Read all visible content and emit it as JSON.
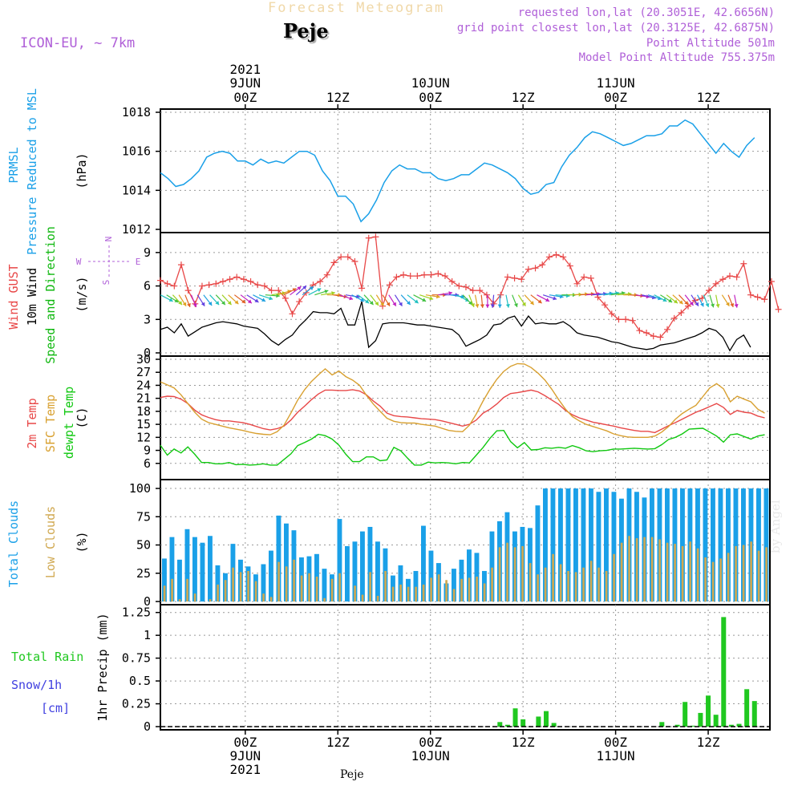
{
  "header": {
    "title": "Forecast Meteogram",
    "location": "Peje",
    "model": "ICON-EU, ~ 7km",
    "requested": "requested lon,lat (20.3051E, 42.6656N)",
    "gridpoint": "grid point closest lon,lat (20.3125E, 42.6875N)",
    "altitude": "Point Altitude 501m",
    "model_altitude": "Model Point Altitude 755.375m",
    "watermark": "by Angel",
    "footer_location": "Peje"
  },
  "colors": {
    "pressure": "#1aa0e8",
    "gust": "#e84848",
    "wind": "#000000",
    "dir": "#10b810",
    "temp2m": "#e84848",
    "sfc": "#d8a030",
    "dewpt": "#10c810",
    "total_cloud": "#1aa0e8",
    "low_cloud": "#d0a850",
    "rain": "#20c820",
    "snow": "#4040e0",
    "purple": "#b060d8"
  },
  "time_axis": {
    "top": [
      {
        "h": 0,
        "l1": "2021",
        "l2": "9JUN",
        "l3": "00Z"
      },
      {
        "h": 12,
        "l1": "",
        "l2": "",
        "l3": "12Z"
      },
      {
        "h": 24,
        "l1": "",
        "l2": "10JUN",
        "l3": "00Z"
      },
      {
        "h": 36,
        "l1": "",
        "l2": "",
        "l3": "12Z"
      },
      {
        "h": 48,
        "l1": "",
        "l2": "11JUN",
        "l3": "00Z"
      },
      {
        "h": 60,
        "l1": "",
        "l2": "",
        "l3": "12Z"
      }
    ],
    "bottom": [
      {
        "h": 0,
        "l1": "00Z",
        "l2": "9JUN",
        "l3": "2021"
      },
      {
        "h": 12,
        "l1": "12Z",
        "l2": "",
        "l3": ""
      },
      {
        "h": 24,
        "l1": "00Z",
        "l2": "10JUN",
        "l3": ""
      },
      {
        "h": 36,
        "l1": "12Z",
        "l2": "",
        "l3": ""
      },
      {
        "h": 48,
        "l1": "00Z",
        "l2": "11JUN",
        "l3": ""
      },
      {
        "h": 60,
        "l1": "12Z",
        "l2": "",
        "l3": ""
      }
    ]
  },
  "chart_data": [
    {
      "type": "line",
      "id": "pressure",
      "ylabel_left": [
        "PRMSL",
        "Pressure Reduced to MSL"
      ],
      "unit": "(hPa)",
      "ylim": [
        1012,
        1018
      ],
      "yticks": [
        1012,
        1014,
        1016,
        1018
      ],
      "x_start": -11,
      "x_step": 1,
      "series": [
        {
          "name": "PRMSL",
          "values": [
            1014.9,
            1014.6,
            1014.2,
            1014.3,
            1014.6,
            1015.0,
            1015.7,
            1015.9,
            1016.0,
            1015.9,
            1015.5,
            1015.5,
            1015.3,
            1015.6,
            1015.4,
            1015.5,
            1015.4,
            1015.7,
            1016.0,
            1016.0,
            1015.8,
            1015.0,
            1014.5,
            1013.7,
            1013.7,
            1013.3,
            1012.4,
            1012.8,
            1013.5,
            1014.4,
            1015.0,
            1015.3,
            1015.1,
            1015.1,
            1014.9,
            1014.9,
            1014.6,
            1014.5,
            1014.6,
            1014.8,
            1014.8,
            1015.1,
            1015.4,
            1015.3,
            1015.1,
            1014.9,
            1014.6,
            1014.1,
            1013.8,
            1013.9,
            1014.3,
            1014.4,
            1015.2,
            1015.8,
            1016.2,
            1016.7,
            1017.0,
            1016.9,
            1016.7,
            1016.5,
            1016.3,
            1016.4,
            1016.6,
            1016.8,
            1016.8,
            1016.9,
            1017.3,
            1017.3,
            1017.6,
            1017.4,
            1016.9,
            1016.4,
            1015.9,
            1016.4,
            1016.0,
            1015.7,
            1016.3,
            1016.7
          ]
        }
      ]
    },
    {
      "type": "line",
      "id": "wind",
      "ylabel_left": [
        "Wind GUST",
        "10m Wind",
        "Speed and Direction"
      ],
      "unit": "(m/s)",
      "compass": {
        "n": "N",
        "s": "S",
        "w": "W",
        "e": "E"
      },
      "ylim": [
        0,
        10.5
      ],
      "yticks": [
        0,
        3,
        6,
        9
      ],
      "x_start": -11,
      "x_step": 1,
      "series": [
        {
          "name": "Wind GUST",
          "values": [
            6.5,
            6.2,
            6.0,
            7.9,
            5.6,
            4.4,
            6.0,
            6.1,
            6.2,
            6.4,
            6.6,
            6.8,
            6.6,
            6.4,
            6.1,
            6.0,
            5.6,
            5.6,
            4.9,
            3.5,
            4.6,
            5.4,
            6.1,
            6.4,
            7.0,
            8.1,
            8.6,
            8.6,
            8.2,
            5.8,
            10.3,
            10.4,
            4.2,
            6.1,
            6.8,
            7.0,
            6.9,
            6.9,
            7.0,
            7.0,
            7.1,
            6.9,
            6.4,
            6.0,
            5.9,
            5.6,
            5.6,
            5.2,
            4.4,
            5.2,
            6.8,
            6.7,
            6.6,
            7.5,
            7.6,
            7.9,
            8.6,
            8.8,
            8.6,
            7.8,
            6.2,
            6.8,
            6.7,
            5.0,
            4.3,
            3.5,
            3.0,
            3.0,
            2.9,
            2.0,
            1.8,
            1.5,
            1.4,
            2.1,
            3.1,
            3.6,
            4.2,
            4.7,
            4.9,
            5.6,
            6.2,
            6.6,
            6.9,
            6.8,
            8.0,
            5.2,
            5.0,
            4.8,
            6.4,
            3.9
          ]
        },
        {
          "name": "10m Wind",
          "values": [
            2.1,
            2.3,
            1.8,
            2.6,
            1.5,
            1.9,
            2.3,
            2.5,
            2.7,
            2.8,
            2.7,
            2.6,
            2.4,
            2.3,
            2.2,
            1.7,
            1.1,
            0.7,
            1.2,
            1.6,
            2.4,
            3.0,
            3.7,
            3.6,
            3.6,
            3.5,
            4.0,
            2.5,
            2.5,
            4.6,
            0.5,
            1.1,
            2.6,
            2.7,
            2.7,
            2.7,
            2.6,
            2.5,
            2.5,
            2.4,
            2.3,
            2.2,
            2.1,
            1.6,
            0.6,
            0.9,
            1.2,
            1.6,
            2.5,
            2.6,
            3.1,
            3.3,
            2.4,
            3.3,
            2.6,
            2.7,
            2.6,
            2.6,
            2.8,
            2.4,
            1.8,
            1.6,
            1.5,
            1.4,
            1.2,
            1.0,
            0.9,
            0.7,
            0.5,
            0.4,
            0.3,
            0.4,
            0.7,
            0.8,
            0.9,
            1.1,
            1.3,
            1.5,
            1.8,
            2.2,
            2.0,
            1.4,
            0.2,
            1.2,
            1.6,
            0.5
          ]
        },
        {
          "name": "Direction",
          "values": [
            120,
            125,
            140,
            150,
            160,
            160,
            150,
            145,
            140,
            140,
            140,
            135,
            130,
            130,
            125,
            120,
            110,
            95,
            80,
            70,
            60,
            50,
            45,
            50,
            60,
            70,
            80,
            90,
            100,
            110,
            100,
            120,
            130,
            140,
            145,
            150,
            150,
            150,
            150,
            140,
            130,
            120,
            110,
            100,
            90,
            80,
            90,
            100,
            120,
            140,
            160,
            170,
            175,
            180,
            185,
            180,
            170,
            160,
            150,
            140,
            130,
            120,
            110,
            100,
            95,
            90,
            88,
            86,
            85,
            85,
            84,
            82,
            80,
            80,
            85,
            90,
            95,
            100,
            105,
            110,
            120,
            125,
            130,
            135,
            140,
            145,
            150,
            155,
            160,
            165,
            170,
            150,
            160,
            170
          ]
        }
      ]
    },
    {
      "type": "line",
      "id": "temperature",
      "ylabel_left": [
        "2m Temp",
        "SFC Temp",
        "dewpt Temp"
      ],
      "unit": "(C)",
      "ylim": [
        3,
        30
      ],
      "yticks": [
        6,
        9,
        12,
        15,
        18,
        21,
        24,
        27,
        30
      ],
      "x_start": -11,
      "x_step": 1,
      "series": [
        {
          "name": "2m Temp",
          "values": [
            21.2,
            21.5,
            21.4,
            20.8,
            19.8,
            18.3,
            17.2,
            16.6,
            16.1,
            15.8,
            15.8,
            15.6,
            15.4,
            15.0,
            14.5,
            14.0,
            13.7,
            14.0,
            14.6,
            16.0,
            17.8,
            19.2,
            20.7,
            22.0,
            22.9,
            22.9,
            22.8,
            22.8,
            23.0,
            22.7,
            21.8,
            20.4,
            19.2,
            17.6,
            17.0,
            16.8,
            16.7,
            16.5,
            16.3,
            16.2,
            16.1,
            15.8,
            15.4,
            15.0,
            14.6,
            15.0,
            16.0,
            17.6,
            18.5,
            19.7,
            21.2,
            22.1,
            22.3,
            22.6,
            22.9,
            22.5,
            21.6,
            20.6,
            19.6,
            18.2,
            17.2,
            16.5,
            16.0,
            15.5,
            15.2,
            14.9,
            14.6,
            14.2,
            13.9,
            13.6,
            13.4,
            13.4,
            13.1,
            13.9,
            14.7,
            15.4,
            16.2,
            17.0,
            17.8,
            18.4,
            19.1,
            19.8,
            18.9,
            17.3,
            18.2,
            17.8,
            17.6,
            16.9,
            16.5
          ]
        },
        {
          "name": "SFC Temp",
          "values": [
            24.8,
            24.1,
            23.4,
            21.8,
            19.8,
            17.8,
            16.2,
            15.4,
            15.0,
            14.6,
            14.2,
            13.9,
            13.6,
            13.2,
            12.9,
            12.7,
            12.6,
            13.3,
            14.8,
            17.6,
            20.6,
            23.0,
            24.9,
            26.4,
            27.8,
            26.4,
            27.3,
            26.0,
            25.2,
            24.0,
            21.7,
            19.7,
            18.0,
            16.4,
            15.7,
            15.4,
            15.3,
            15.3,
            15.0,
            14.8,
            14.6,
            14.1,
            13.6,
            13.4,
            13.3,
            14.8,
            17.4,
            20.4,
            23.1,
            25.4,
            27.2,
            28.4,
            29.0,
            28.9,
            28.1,
            26.8,
            25.2,
            23.1,
            20.7,
            18.5,
            16.8,
            15.8,
            15.0,
            14.5,
            14.0,
            13.5,
            12.8,
            12.4,
            12.1,
            12.0,
            12.0,
            12.0,
            12.3,
            13.2,
            14.5,
            16.2,
            17.5,
            18.5,
            19.4,
            21.4,
            23.4,
            24.4,
            23.2,
            20.2,
            21.5,
            20.8,
            20.2,
            18.5,
            17.6
          ]
        },
        {
          "name": "dewpt Temp",
          "values": [
            10.2,
            7.9,
            9.3,
            8.4,
            9.8,
            8.1,
            6.2,
            6.2,
            5.9,
            5.9,
            6.2,
            5.7,
            5.8,
            5.6,
            5.7,
            5.9,
            5.6,
            5.6,
            6.9,
            8.2,
            10.1,
            10.8,
            11.6,
            12.7,
            12.4,
            11.6,
            10.2,
            8.1,
            6.4,
            6.4,
            7.5,
            7.5,
            6.6,
            6.8,
            9.7,
            8.9,
            7.2,
            5.6,
            5.6,
            6.3,
            6.1,
            6.2,
            6.1,
            5.9,
            6.2,
            6.1,
            7.9,
            9.7,
            11.8,
            13.5,
            13.6,
            11.0,
            9.6,
            10.8,
            9.1,
            9.2,
            9.6,
            9.5,
            9.7,
            9.5,
            10.1,
            9.6,
            8.9,
            8.7,
            8.9,
            9.0,
            9.3,
            9.3,
            9.4,
            9.5,
            9.4,
            9.3,
            9.4,
            10.3,
            11.5,
            12.0,
            12.8,
            13.9,
            14.0,
            14.1,
            13.2,
            12.3,
            10.9,
            12.6,
            12.8,
            12.2,
            11.6,
            12.3,
            12.6
          ]
        }
      ]
    },
    {
      "type": "bar",
      "id": "clouds",
      "ylabel_left": [
        "Total Clouds",
        "Low Clouds"
      ],
      "unit": "(%)",
      "ylim": [
        0,
        105
      ],
      "yticks": [
        0,
        25,
        50,
        75,
        100
      ],
      "x_start": -11,
      "x_step": 1,
      "series": [
        {
          "name": "Total Clouds",
          "values": [
            38,
            57,
            37,
            64,
            57,
            52,
            58,
            32,
            25,
            51,
            37,
            31,
            24,
            33,
            45,
            76,
            69,
            63,
            39,
            40,
            42,
            29,
            24,
            73,
            49,
            53,
            62,
            66,
            53,
            47,
            23,
            32,
            20,
            27,
            67,
            45,
            34,
            16,
            29,
            37,
            46,
            43,
            27,
            62,
            71,
            79,
            62,
            66,
            65,
            85,
            100,
            100,
            100,
            100,
            100,
            100,
            100,
            97,
            100,
            97,
            91,
            100,
            97,
            92,
            100,
            100,
            100,
            100,
            100,
            100,
            100,
            100,
            100,
            100,
            100,
            100,
            100,
            100,
            100,
            100
          ]
        },
        {
          "name": "Low Clouds",
          "values": [
            14,
            20,
            2,
            20,
            7,
            0,
            2,
            15,
            19,
            30,
            26,
            27,
            18,
            7,
            4,
            35,
            31,
            37,
            23,
            25,
            22,
            3,
            20,
            25,
            0,
            14,
            6,
            26,
            5,
            27,
            13,
            15,
            13,
            13,
            15,
            21,
            24,
            19,
            11,
            20,
            21,
            22,
            16,
            30,
            48,
            52,
            48,
            49,
            34,
            24,
            30,
            42,
            33,
            27,
            26,
            30,
            36,
            30,
            27,
            42,
            52,
            58,
            56,
            57,
            57,
            55,
            52,
            51,
            49,
            53,
            47,
            39,
            35,
            38,
            43,
            49,
            50,
            53,
            45,
            48,
            26
          ]
        }
      ]
    },
    {
      "type": "bar",
      "id": "precip",
      "ylabel_left": [
        "Total  Rain",
        "Snow/1h",
        "[cm]"
      ],
      "unit": "1hr Precip (mm)",
      "ylim": [
        0,
        1.3
      ],
      "yticks": [
        0,
        0.25,
        0.5,
        0.75,
        1,
        1.25
      ],
      "ytick_labels": [
        "0",
        "0.25",
        "0.5",
        "0.75",
        "1",
        "1.25"
      ],
      "x_start": -11,
      "x_step": 1,
      "series": [
        {
          "name": "Total Rain",
          "points": [
            [
              33,
              0.05
            ],
            [
              34,
              0.02
            ],
            [
              35,
              0.2
            ],
            [
              36,
              0.08
            ],
            [
              38,
              0.11
            ],
            [
              39,
              0.17
            ],
            [
              40,
              0.04
            ],
            [
              54,
              0.05
            ],
            [
              56,
              0.02
            ],
            [
              57,
              0.27
            ],
            [
              58,
              0.01
            ],
            [
              59,
              0.15
            ],
            [
              60,
              0.34
            ],
            [
              61,
              0.13
            ],
            [
              62,
              1.2
            ],
            [
              63,
              0.02
            ],
            [
              64,
              0.03
            ],
            [
              65,
              0.41
            ],
            [
              66,
              0.28
            ]
          ]
        }
      ]
    }
  ]
}
